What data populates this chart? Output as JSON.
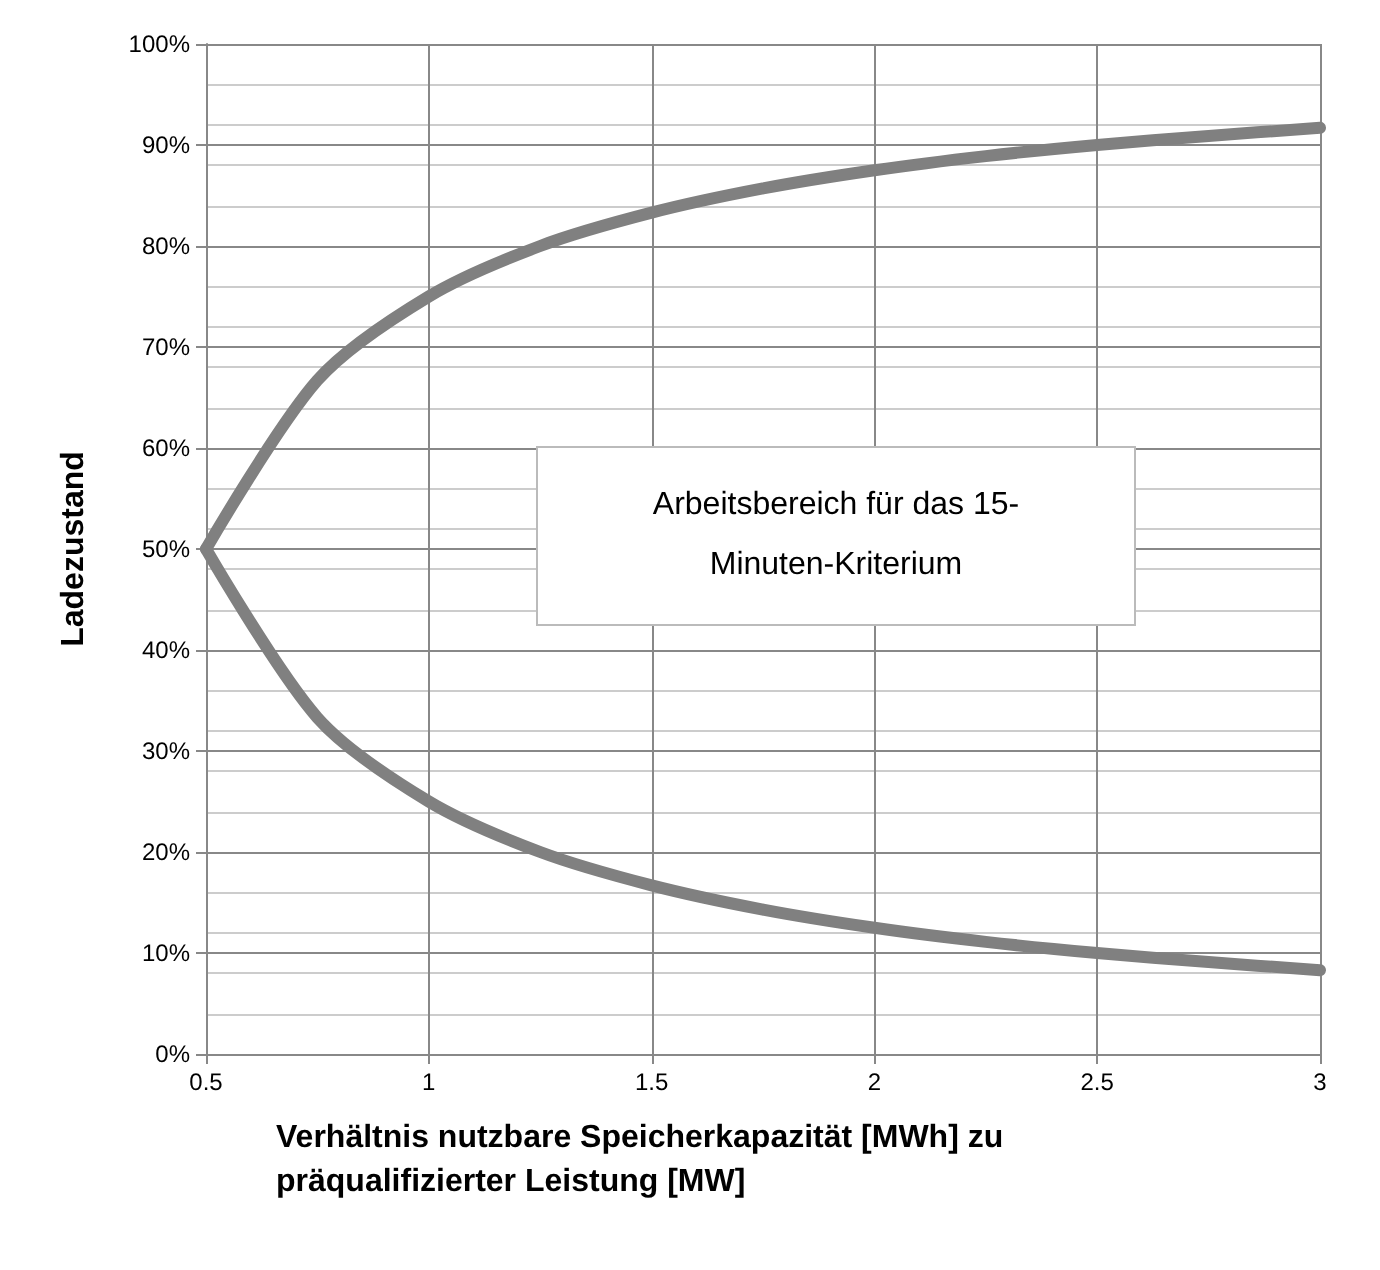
{
  "chart_data": {
    "type": "line",
    "xlabel": "Verhältnis nutzbare Speicherkapazität [MWh] zu präqualifizierter Leistung [MW]",
    "ylabel": "Ladezustand",
    "x": [
      0.5,
      0.75,
      1,
      1.25,
      1.5,
      1.75,
      2,
      2.25,
      2.5,
      2.75,
      3
    ],
    "series": [
      {
        "color": "#808080",
        "values": [
          50,
          66.7,
          75,
          80,
          83.3,
          85.7,
          87.5,
          88.9,
          90,
          90.9,
          91.7
        ]
      },
      {
        "color": "#808080",
        "values": [
          50,
          33.3,
          25,
          20,
          16.7,
          14.3,
          12.5,
          11.1,
          10,
          9.1,
          8.3
        ]
      }
    ],
    "xlim": [
      0.5,
      3
    ],
    "xticks": [
      0.5,
      1,
      1.5,
      2,
      2.5,
      3
    ],
    "ylim": [
      0,
      100
    ],
    "yticks": [
      {
        "value": 0,
        "label": "0%"
      },
      {
        "value": 10,
        "label": "10%"
      },
      {
        "value": 20,
        "label": "20%"
      },
      {
        "value": 30,
        "label": "30%"
      },
      {
        "value": 40,
        "label": "40%"
      },
      {
        "value": 50,
        "label": "50%"
      },
      {
        "value": 60,
        "label": "60%"
      },
      {
        "value": 70,
        "label": "70%"
      },
      {
        "value": 80,
        "label": "80%"
      },
      {
        "value": 90,
        "label": "90%"
      },
      {
        "value": 100,
        "label": "100%"
      }
    ],
    "grid": true,
    "marker": "none",
    "line_style": "solid",
    "annotations": [
      "Arbeitsbereich für das 15-Minuten-Kriterium"
    ]
  }
}
